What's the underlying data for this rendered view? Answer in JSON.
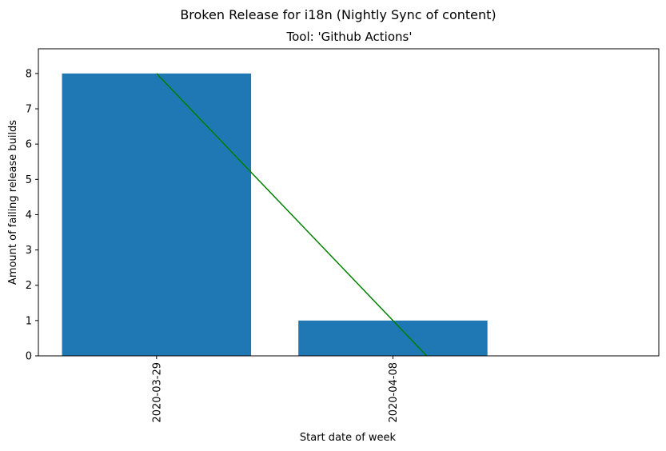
{
  "chart_data": {
    "type": "bar",
    "title": "Broken Release for i18n (Nightly Sync of content)",
    "subtitle": "Tool: 'Github Actions'",
    "xlabel": "Start date of week",
    "ylabel": "Amount of failing release builds",
    "categories": [
      "2020-03-29",
      "2020-04-08"
    ],
    "values": [
      8,
      1
    ],
    "bar_color": "#1f77b4",
    "trend_line": {
      "color": "#008000",
      "start": [
        0,
        8
      ],
      "end": [
        1.143,
        0
      ]
    },
    "xlim": [
      -0.5,
      2.125
    ],
    "ylim": [
      0,
      8.7
    ],
    "yticks": [
      0,
      1,
      2,
      3,
      4,
      5,
      6,
      7,
      8
    ],
    "grid": false
  }
}
